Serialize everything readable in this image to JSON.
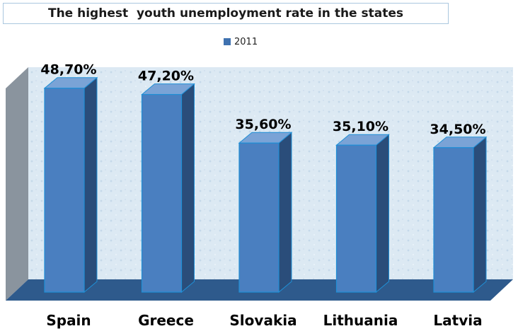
{
  "chart_data": {
    "type": "bar",
    "title": "The highest  youth unemployment rate in the states",
    "categories": [
      "Spain",
      "Greece",
      "Slovakia",
      "Lithuania",
      "Latvia"
    ],
    "series": [
      {
        "name": "2011",
        "values": [
          48.7,
          47.2,
          35.6,
          35.1,
          34.5
        ]
      }
    ],
    "value_labels": [
      "48,70%",
      "47,20%",
      "35,60%",
      "35,10%",
      "34,50%"
    ],
    "legend_position": "top",
    "style": "3d-column",
    "colors": {
      "bar_front": "#4a7fc0",
      "bar_side": "#2a4d7a",
      "bar_top": "#7aa3d6",
      "floor": "#2e5a8c",
      "wall": "#dce9f3",
      "left_wall": "#8a949e"
    }
  }
}
